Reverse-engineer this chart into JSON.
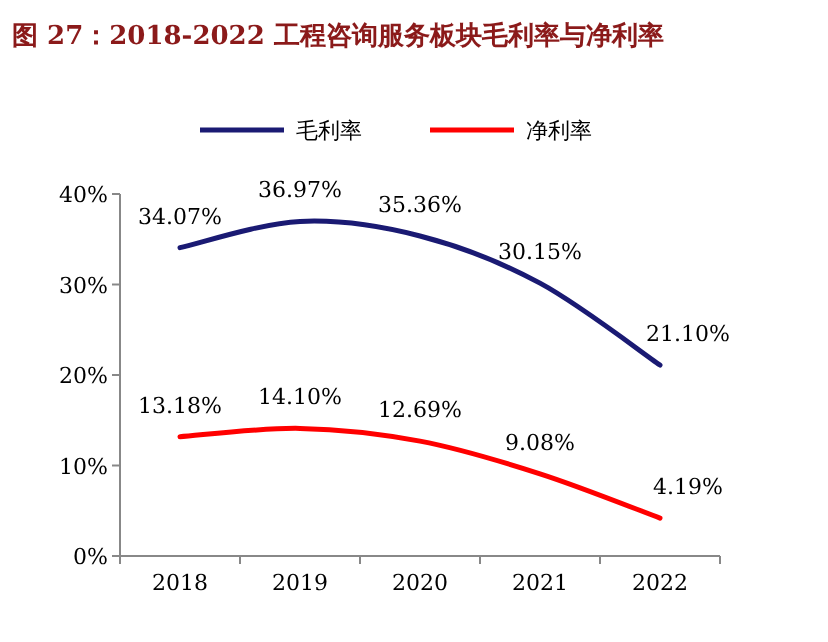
{
  "chart_data": {
    "type": "line",
    "title": "图 27：2018-2022 工程咨询服务板块毛利率与净利率",
    "categories": [
      "2018",
      "2019",
      "2020",
      "2021",
      "2022"
    ],
    "series": [
      {
        "name": "毛利率",
        "color": "#1a1a73",
        "values": [
          34.07,
          36.97,
          35.36,
          30.15,
          21.1
        ],
        "value_labels": [
          "34.07%",
          "36.97%",
          "35.36%",
          "30.15%",
          "21.10%"
        ]
      },
      {
        "name": "净利率",
        "color": "#ff0000",
        "values": [
          13.18,
          14.1,
          12.69,
          9.08,
          4.19
        ],
        "value_labels": [
          "13.18%",
          "14.10%",
          "12.69%",
          "9.08%",
          "4.19%"
        ]
      }
    ],
    "ylim": [
      0,
      40
    ],
    "yticks": [
      {
        "value": 0,
        "label": "0%"
      },
      {
        "value": 10,
        "label": "10%"
      },
      {
        "value": 20,
        "label": "20%"
      },
      {
        "value": 30,
        "label": "30%"
      },
      {
        "value": 40,
        "label": "40%"
      }
    ],
    "legend": "top",
    "marker": "none",
    "line_style": "solid",
    "grid": false
  }
}
